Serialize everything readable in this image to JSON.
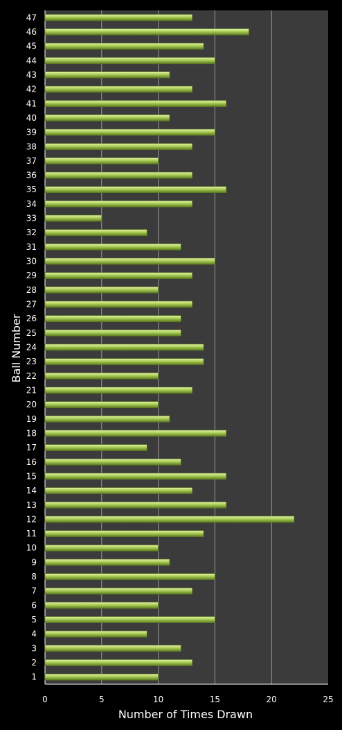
{
  "chart_data": {
    "type": "bar",
    "orientation": "horizontal",
    "title": "",
    "xlabel": "Number of Times Drawn",
    "ylabel": "Ball Number",
    "xlim": [
      0,
      25
    ],
    "xticks": [
      0,
      5,
      10,
      15,
      20,
      25
    ],
    "grid": true,
    "legend": "none",
    "categories": [
      "1",
      "2",
      "3",
      "4",
      "5",
      "6",
      "7",
      "8",
      "9",
      "10",
      "11",
      "12",
      "13",
      "14",
      "15",
      "16",
      "17",
      "18",
      "19",
      "20",
      "21",
      "22",
      "23",
      "24",
      "25",
      "26",
      "27",
      "28",
      "29",
      "30",
      "31",
      "32",
      "33",
      "34",
      "35",
      "36",
      "37",
      "38",
      "39",
      "40",
      "41",
      "42",
      "43",
      "44",
      "45",
      "46",
      "47"
    ],
    "values": [
      10,
      13,
      12,
      9,
      15,
      10,
      13,
      15,
      11,
      10,
      14,
      22,
      16,
      13,
      16,
      12,
      9,
      16,
      11,
      10,
      13,
      10,
      14,
      14,
      12,
      12,
      13,
      10,
      13,
      15,
      12,
      9,
      5,
      13,
      16,
      13,
      10,
      13,
      15,
      11,
      16,
      13,
      11,
      15,
      14,
      18,
      13
    ],
    "colors": {
      "background": "#000000",
      "plot_area": "#3b3b3b",
      "gridline": "#9a9a9a",
      "bar_light": "#e6f5a8",
      "bar_mid": "#a8cc55",
      "bar_dark": "#5d7a1f",
      "text": "#ffffff"
    }
  }
}
